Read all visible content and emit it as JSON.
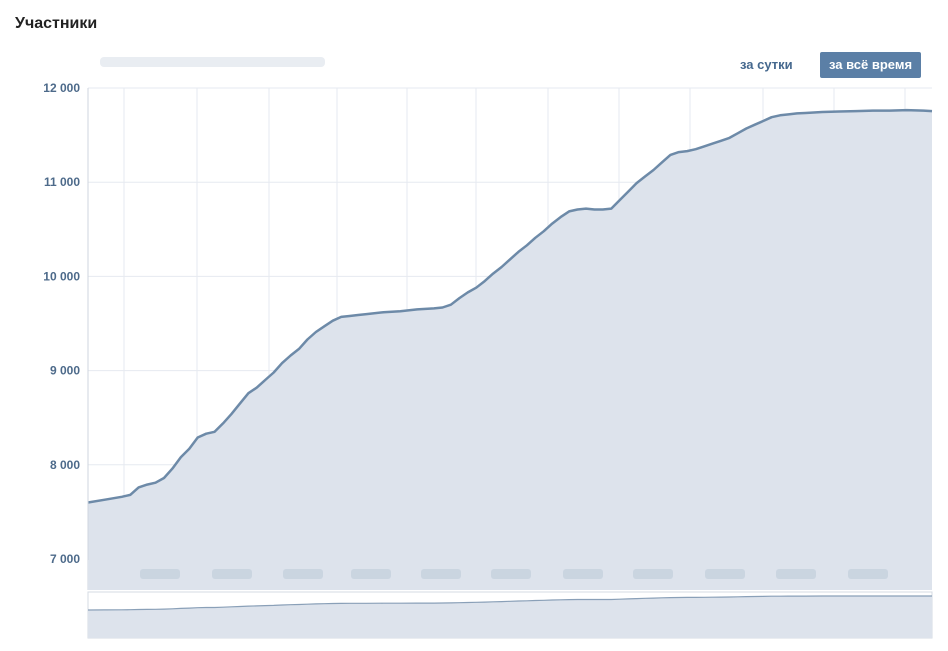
{
  "page": {
    "title": "Участники"
  },
  "buttons": {
    "day": "за сутки",
    "all_time": "за всё время"
  },
  "colors": {
    "line": "#6d8aa8",
    "area": "#dde3ec",
    "grid": "#e6eaf0",
    "axis_text": "#4d6a8a",
    "active_button": "#5b7fa6"
  },
  "chart_data": {
    "type": "area",
    "title": "",
    "xlabel": "",
    "ylabel": "",
    "ylim": [
      6800,
      12000
    ],
    "yticks": [
      7000,
      8000,
      9000,
      10000,
      11000,
      12000
    ],
    "ytick_labels": [
      "7 000",
      "8 000",
      "9 000",
      "10 000",
      "11 000",
      "12 000"
    ],
    "grid": true,
    "legend": "none",
    "series": [
      {
        "points": [
          [
            0,
            7600
          ],
          [
            0.02,
            7630
          ],
          [
            0.04,
            7660
          ],
          [
            0.05,
            7680
          ],
          [
            0.06,
            7760
          ],
          [
            0.07,
            7790
          ],
          [
            0.08,
            7810
          ],
          [
            0.09,
            7860
          ],
          [
            0.1,
            7960
          ],
          [
            0.11,
            8080
          ],
          [
            0.12,
            8170
          ],
          [
            0.13,
            8290
          ],
          [
            0.14,
            8330
          ],
          [
            0.15,
            8350
          ],
          [
            0.16,
            8440
          ],
          [
            0.17,
            8540
          ],
          [
            0.18,
            8650
          ],
          [
            0.19,
            8760
          ],
          [
            0.2,
            8820
          ],
          [
            0.21,
            8900
          ],
          [
            0.22,
            8980
          ],
          [
            0.23,
            9080
          ],
          [
            0.24,
            9160
          ],
          [
            0.25,
            9230
          ],
          [
            0.26,
            9330
          ],
          [
            0.27,
            9410
          ],
          [
            0.28,
            9470
          ],
          [
            0.29,
            9530
          ],
          [
            0.3,
            9570
          ],
          [
            0.31,
            9580
          ],
          [
            0.32,
            9590
          ],
          [
            0.33,
            9600
          ],
          [
            0.35,
            9620
          ],
          [
            0.37,
            9630
          ],
          [
            0.39,
            9650
          ],
          [
            0.41,
            9660
          ],
          [
            0.42,
            9670
          ],
          [
            0.43,
            9700
          ],
          [
            0.44,
            9770
          ],
          [
            0.45,
            9830
          ],
          [
            0.46,
            9880
          ],
          [
            0.47,
            9950
          ],
          [
            0.48,
            10030
          ],
          [
            0.49,
            10100
          ],
          [
            0.5,
            10180
          ],
          [
            0.51,
            10260
          ],
          [
            0.52,
            10330
          ],
          [
            0.53,
            10410
          ],
          [
            0.54,
            10480
          ],
          [
            0.55,
            10560
          ],
          [
            0.56,
            10630
          ],
          [
            0.57,
            10690
          ],
          [
            0.58,
            10710
          ],
          [
            0.59,
            10720
          ],
          [
            0.6,
            10710
          ],
          [
            0.61,
            10710
          ],
          [
            0.62,
            10720
          ],
          [
            0.63,
            10810
          ],
          [
            0.64,
            10900
          ],
          [
            0.65,
            10990
          ],
          [
            0.66,
            11060
          ],
          [
            0.67,
            11130
          ],
          [
            0.68,
            11210
          ],
          [
            0.69,
            11290
          ],
          [
            0.7,
            11320
          ],
          [
            0.71,
            11330
          ],
          [
            0.72,
            11350
          ],
          [
            0.73,
            11380
          ],
          [
            0.74,
            11410
          ],
          [
            0.75,
            11440
          ],
          [
            0.76,
            11470
          ],
          [
            0.77,
            11520
          ],
          [
            0.78,
            11570
          ],
          [
            0.79,
            11610
          ],
          [
            0.8,
            11650
          ],
          [
            0.81,
            11690
          ],
          [
            0.82,
            11710
          ],
          [
            0.83,
            11720
          ],
          [
            0.84,
            11730
          ],
          [
            0.85,
            11735
          ],
          [
            0.87,
            11745
          ],
          [
            0.89,
            11750
          ],
          [
            0.91,
            11755
          ],
          [
            0.93,
            11760
          ],
          [
            0.95,
            11760
          ],
          [
            0.97,
            11765
          ],
          [
            0.99,
            11760
          ],
          [
            1.0,
            11755
          ]
        ]
      }
    ]
  }
}
